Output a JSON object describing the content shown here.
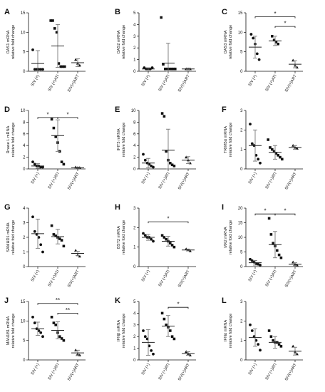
{
  "figure": {
    "groups": [
      "SIV (+)",
      "SIV (+)ATI",
      "SIV(+)ART"
    ],
    "ylabel_suffix": "relative fold change"
  },
  "chart_data": [
    {
      "type": "scatter",
      "panel": "A",
      "ylabel": "OAS1 mRNA",
      "ylim": [
        0,
        15
      ],
      "yticks": [
        0,
        5,
        10,
        15
      ],
      "points": [
        [
          5.5,
          0.5,
          0.5,
          0.5,
          0.5,
          0.5
        ],
        [
          13,
          13,
          11,
          10,
          2,
          1.2,
          1.2,
          1.2
        ],
        [
          3,
          2,
          1.5
        ]
      ],
      "means": [
        2.0,
        6.5,
        2.2
      ],
      "sd": [
        3.3,
        5.5,
        1.0
      ],
      "shapes": [
        "circle",
        "square",
        "triangle"
      ],
      "sig": []
    },
    {
      "type": "scatter",
      "panel": "B",
      "ylabel": "OAS2 mRNA",
      "ylim": [
        0,
        5
      ],
      "yticks": [
        0,
        1,
        2,
        3,
        4,
        5
      ],
      "points": [
        [
          0.3,
          0.2,
          0.2,
          0.2,
          0.3
        ],
        [
          4.6,
          0.6,
          0.2,
          0.2,
          0.2,
          0.2,
          0.2,
          0.2
        ],
        [
          0.2,
          0.2,
          0.2
        ]
      ],
      "means": [
        0.2,
        0.7,
        0.2
      ],
      "sd": [
        0.1,
        1.7,
        0.05
      ],
      "shapes": [
        "circle",
        "square",
        "triangle"
      ],
      "sig": []
    },
    {
      "type": "scatter",
      "panel": "C",
      "ylabel": "OAS3 mRNA",
      "ylim": [
        0,
        15
      ],
      "yticks": [
        0,
        5,
        10,
        15
      ],
      "points": [
        [
          9.5,
          8.5,
          7,
          4.5,
          3
        ],
        [
          9,
          8,
          7.5,
          7
        ],
        [
          2.8,
          1.5,
          1
        ]
      ],
      "means": [
        6.2,
        7.8,
        1.8
      ],
      "sd": [
        2.8,
        1.2,
        0.9
      ],
      "shapes": [
        "circle",
        "square",
        "triangle"
      ],
      "sig": [
        {
          "from": 0,
          "to": 2,
          "label": "*",
          "level": 14
        },
        {
          "from": 1,
          "to": 2,
          "label": "*",
          "level": 11.5
        }
      ]
    },
    {
      "type": "scatter",
      "panel": "D",
      "ylabel": "Rnase L mRNA",
      "ylim": [
        0,
        10
      ],
      "yticks": [
        0,
        2,
        4,
        6,
        8,
        10
      ],
      "points": [
        [
          1.2,
          0.8,
          0.5,
          0.5,
          0.3,
          0.3
        ],
        [
          8.5,
          7,
          5.5,
          4.5,
          3,
          1.2,
          0.8
        ],
        [
          0.3,
          0.2,
          0.2
        ]
      ],
      "means": [
        0.5,
        5.7,
        0.2
      ],
      "sd": [
        0.4,
        2.7,
        0.1
      ],
      "shapes": [
        "circle",
        "square",
        "triangle"
      ],
      "sig": [
        {
          "from": 0,
          "to": 1,
          "label": "*",
          "level": 8.8
        },
        {
          "from": 1,
          "to": 2,
          "label": "*",
          "level": 8.8
        }
      ]
    },
    {
      "type": "scatter",
      "panel": "E",
      "ylabel": "IFIT3 mRNA",
      "ylim": [
        0,
        10
      ],
      "yticks": [
        0,
        2,
        4,
        6,
        8,
        10
      ],
      "points": [
        [
          2.5,
          1.5,
          1,
          0.8,
          0.5,
          0.3
        ],
        [
          9.5,
          9,
          3,
          1.5,
          1,
          0.7,
          0.5
        ],
        [
          2,
          1.5,
          1
        ]
      ],
      "means": [
        1.0,
        3.2,
        1.5
      ],
      "sd": [
        0.8,
        3.6,
        0.6
      ],
      "shapes": [
        "circle",
        "square",
        "triangle"
      ],
      "sig": []
    },
    {
      "type": "scatter",
      "panel": "F",
      "ylabel": "TRIM5α mRNA",
      "ylim": [
        0,
        3
      ],
      "yticks": [
        0,
        1,
        2,
        3
      ],
      "points": [
        [
          2.3,
          1.3,
          1.2,
          0.7,
          0.5,
          0.3
        ],
        [
          1.5,
          1.1,
          1,
          0.9,
          0.8,
          0.7,
          0.6,
          0.5
        ],
        [
          1.2,
          1.1,
          1.05
        ]
      ],
      "means": [
        1.2,
        0.85,
        1.1
      ],
      "sd": [
        0.8,
        0.35,
        0.1
      ],
      "shapes": [
        "circle",
        "square",
        "triangle"
      ],
      "sig": []
    },
    {
      "type": "scatter",
      "panel": "G",
      "ylabel": "SAMHD1 mRNA",
      "ylim": [
        0,
        4
      ],
      "yticks": [
        0,
        1,
        2,
        3,
        4
      ],
      "points": [
        [
          3.4,
          2.4,
          2.2,
          2,
          1.5,
          1.0
        ],
        [
          2.8,
          2.2,
          2.1,
          2.0,
          1.9,
          1.8,
          1.4
        ],
        [
          1.1,
          0.8,
          0.7
        ]
      ],
      "means": [
        2.25,
        2.05,
        0.9
      ],
      "sd": [
        1.0,
        0.5,
        0.15
      ],
      "shapes": [
        "circle",
        "square",
        "triangle"
      ],
      "sig": []
    },
    {
      "type": "scatter",
      "panel": "H",
      "ylabel": "BST2 mRNA",
      "ylim": [
        0,
        3
      ],
      "yticks": [
        0,
        1,
        2,
        3
      ],
      "points": [
        [
          1.7,
          1.6,
          1.5,
          1.5,
          1.4,
          1.3
        ],
        [
          1.6,
          1.5,
          1.4,
          1.3,
          1.2,
          1.1,
          1.0
        ],
        [
          0.9,
          0.85,
          0.8
        ]
      ],
      "means": [
        1.5,
        1.3,
        0.85
      ],
      "sd": [
        0.15,
        0.25,
        0.05
      ],
      "shapes": [
        "circle",
        "square",
        "triangle"
      ],
      "sig": [
        {
          "from": 0,
          "to": 2,
          "label": "*",
          "level": 2.3
        }
      ]
    },
    {
      "type": "scatter",
      "panel": "I",
      "ylabel": "MX2 mRNA",
      "ylim": [
        0,
        20
      ],
      "yticks": [
        0,
        5,
        10,
        15,
        20
      ],
      "points": [
        [
          2.5,
          2,
          1.5,
          1,
          0.8,
          0.5
        ],
        [
          16.5,
          11,
          8,
          7,
          5.5,
          4,
          3
        ],
        [
          1.5,
          0.8,
          0.5
        ]
      ],
      "means": [
        1.3,
        7.5,
        0.8
      ],
      "sd": [
        0.8,
        4.5,
        0.5
      ],
      "shapes": [
        "circle",
        "square",
        "triangle"
      ],
      "sig": [
        {
          "from": 0,
          "to": 1,
          "label": "*",
          "level": 18
        },
        {
          "from": 1,
          "to": 2,
          "label": "*",
          "level": 18
        }
      ]
    },
    {
      "type": "scatter",
      "panel": "J",
      "ylabel": "MAN1B1 mRNA",
      "ylim": [
        0,
        15
      ],
      "yticks": [
        0,
        5,
        10,
        15
      ],
      "points": [
        [
          11,
          9.5,
          8,
          7.5,
          7,
          6
        ],
        [
          11,
          9.5,
          9,
          7,
          6,
          5.5,
          5
        ],
        [
          2.5,
          1.5,
          1.2
        ]
      ],
      "means": [
        8.0,
        7.6,
        1.8
      ],
      "sd": [
        1.7,
        2.2,
        0.7
      ],
      "shapes": [
        "circle",
        "square",
        "triangle"
      ],
      "sig": [
        {
          "from": 0,
          "to": 2,
          "label": "**",
          "level": 14.5
        },
        {
          "from": 1,
          "to": 2,
          "label": "**",
          "level": 12
        }
      ]
    },
    {
      "type": "scatter",
      "panel": "K",
      "ylabel": "IFNβ mRNA",
      "ylim": [
        0,
        5
      ],
      "yticks": [
        0,
        1,
        2,
        3,
        4,
        5
      ],
      "points": [
        [
          2.5,
          2,
          1.8,
          1.2,
          0.8,
          0.5
        ],
        [
          4,
          3.5,
          3,
          2.8,
          2.5,
          2,
          1.8
        ],
        [
          0.7,
          0.5,
          0.4
        ]
      ],
      "means": [
        1.5,
        2.9,
        0.55
      ],
      "sd": [
        1.1,
        0.9,
        0.15
      ],
      "shapes": [
        "circle",
        "square",
        "triangle"
      ],
      "sig": [
        {
          "from": 1,
          "to": 2,
          "label": "*",
          "level": 4.5
        }
      ]
    },
    {
      "type": "scatter",
      "panel": "L",
      "ylabel": "IFNα mRNA",
      "ylim": [
        0,
        3
      ],
      "yticks": [
        0,
        1,
        2,
        3
      ],
      "points": [
        [
          1.8,
          1.5,
          1.2,
          1.0,
          0.8,
          0.5
        ],
        [
          1.5,
          1.2,
          1.0,
          0.9,
          0.9,
          0.8,
          0.7
        ],
        [
          0.7,
          0.4,
          0.3
        ]
      ],
      "means": [
        1.15,
        0.9,
        0.45
      ],
      "sd": [
        0.45,
        0.3,
        0.2
      ],
      "shapes": [
        "circle",
        "square",
        "triangle"
      ],
      "sig": []
    }
  ]
}
